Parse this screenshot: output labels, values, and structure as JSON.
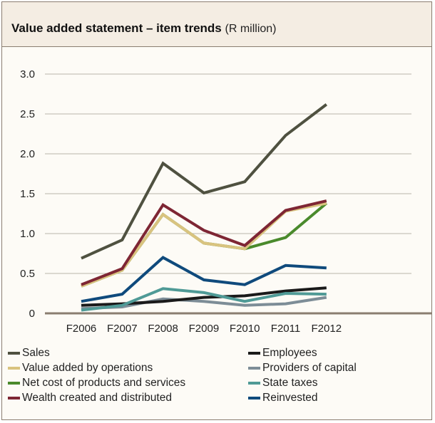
{
  "header": {
    "title_bold": "Value added statement – item trends",
    "title_unit": "(R million)"
  },
  "chart_data": {
    "type": "line",
    "title": "Value added statement – item trends (R million)",
    "xlabel": "",
    "ylabel": "",
    "x": [
      "F2006",
      "F2007",
      "F2008",
      "F2009",
      "F2010",
      "F2011",
      "F2012"
    ],
    "y_tick_labels": [
      "0",
      "0.5",
      "1.0",
      "1.5",
      "2.0",
      "2.5",
      "3.0"
    ],
    "ylim": [
      0,
      3.0
    ],
    "grid": "horizontal",
    "legend_position": "bottom",
    "series": [
      {
        "name": "Sales",
        "color": "#4f5140",
        "values": [
          0.69,
          0.92,
          1.88,
          1.51,
          1.65,
          2.23,
          2.62
        ]
      },
      {
        "name": "Value added by operations",
        "color": "#d9c37f",
        "values": [
          0.34,
          0.54,
          1.24,
          0.88,
          0.81,
          1.28,
          1.38
        ]
      },
      {
        "name": "Net cost of products and services",
        "color": "#4a8a2c",
        "values": [
          0.34,
          0.54,
          1.24,
          0.88,
          0.81,
          0.95,
          1.38
        ]
      },
      {
        "name": "Wealth created and distributed",
        "color": "#7e2634",
        "values": [
          0.36,
          0.56,
          1.36,
          1.04,
          0.85,
          1.29,
          1.41
        ]
      },
      {
        "name": "Employees",
        "color": "#1a1a1a",
        "values": [
          0.1,
          0.12,
          0.15,
          0.2,
          0.22,
          0.28,
          0.32
        ]
      },
      {
        "name": "Providers of capital",
        "color": "#7d8d97",
        "values": [
          0.06,
          0.08,
          0.18,
          0.15,
          0.1,
          0.12,
          0.2
        ]
      },
      {
        "name": "State taxes",
        "color": "#4f9a96",
        "values": [
          0.04,
          0.1,
          0.31,
          0.26,
          0.15,
          0.25,
          0.24
        ]
      },
      {
        "name": "Reinvested",
        "color": "#0f4a7c",
        "values": [
          0.15,
          0.24,
          0.7,
          0.42,
          0.36,
          0.6,
          0.57
        ]
      }
    ]
  },
  "legend": [
    {
      "name": "Sales",
      "color": "#4f5140"
    },
    {
      "name": "Employees",
      "color": "#1a1a1a"
    },
    {
      "name": "Value added by operations",
      "color": "#d9c37f"
    },
    {
      "name": "Providers of capital",
      "color": "#7d8d97"
    },
    {
      "name": "Net cost of products and services",
      "color": "#4a8a2c"
    },
    {
      "name": "State taxes",
      "color": "#4f9a96"
    },
    {
      "name": "Wealth created and distributed",
      "color": "#7e2634"
    },
    {
      "name": "Reinvested",
      "color": "#0f4a7c"
    }
  ]
}
